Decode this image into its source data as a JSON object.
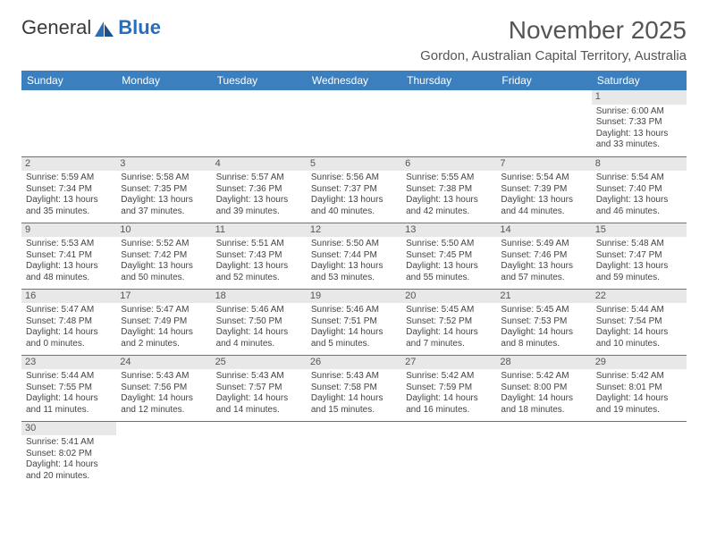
{
  "logo": {
    "text1": "General",
    "text2": "Blue"
  },
  "title": "November 2025",
  "location": "Gordon, Australian Capital Territory, Australia",
  "weekdays": [
    "Sunday",
    "Monday",
    "Tuesday",
    "Wednesday",
    "Thursday",
    "Friday",
    "Saturday"
  ],
  "colors": {
    "header_bg": "#3b7fbf",
    "header_text": "#ffffff",
    "daynum_bg": "#e8e8e8",
    "cell_border": "#3b7fbf"
  },
  "fonts": {
    "title_pt": 28,
    "location_pt": 15,
    "weekday_pt": 12,
    "daynum_pt": 11,
    "body_pt": 10
  },
  "weeks": [
    [
      null,
      null,
      null,
      null,
      null,
      null,
      {
        "n": "1",
        "sr": "Sunrise: 6:00 AM",
        "ss": "Sunset: 7:33 PM",
        "d1": "Daylight: 13 hours",
        "d2": "and 33 minutes."
      }
    ],
    [
      {
        "n": "2",
        "sr": "Sunrise: 5:59 AM",
        "ss": "Sunset: 7:34 PM",
        "d1": "Daylight: 13 hours",
        "d2": "and 35 minutes."
      },
      {
        "n": "3",
        "sr": "Sunrise: 5:58 AM",
        "ss": "Sunset: 7:35 PM",
        "d1": "Daylight: 13 hours",
        "d2": "and 37 minutes."
      },
      {
        "n": "4",
        "sr": "Sunrise: 5:57 AM",
        "ss": "Sunset: 7:36 PM",
        "d1": "Daylight: 13 hours",
        "d2": "and 39 minutes."
      },
      {
        "n": "5",
        "sr": "Sunrise: 5:56 AM",
        "ss": "Sunset: 7:37 PM",
        "d1": "Daylight: 13 hours",
        "d2": "and 40 minutes."
      },
      {
        "n": "6",
        "sr": "Sunrise: 5:55 AM",
        "ss": "Sunset: 7:38 PM",
        "d1": "Daylight: 13 hours",
        "d2": "and 42 minutes."
      },
      {
        "n": "7",
        "sr": "Sunrise: 5:54 AM",
        "ss": "Sunset: 7:39 PM",
        "d1": "Daylight: 13 hours",
        "d2": "and 44 minutes."
      },
      {
        "n": "8",
        "sr": "Sunrise: 5:54 AM",
        "ss": "Sunset: 7:40 PM",
        "d1": "Daylight: 13 hours",
        "d2": "and 46 minutes."
      }
    ],
    [
      {
        "n": "9",
        "sr": "Sunrise: 5:53 AM",
        "ss": "Sunset: 7:41 PM",
        "d1": "Daylight: 13 hours",
        "d2": "and 48 minutes."
      },
      {
        "n": "10",
        "sr": "Sunrise: 5:52 AM",
        "ss": "Sunset: 7:42 PM",
        "d1": "Daylight: 13 hours",
        "d2": "and 50 minutes."
      },
      {
        "n": "11",
        "sr": "Sunrise: 5:51 AM",
        "ss": "Sunset: 7:43 PM",
        "d1": "Daylight: 13 hours",
        "d2": "and 52 minutes."
      },
      {
        "n": "12",
        "sr": "Sunrise: 5:50 AM",
        "ss": "Sunset: 7:44 PM",
        "d1": "Daylight: 13 hours",
        "d2": "and 53 minutes."
      },
      {
        "n": "13",
        "sr": "Sunrise: 5:50 AM",
        "ss": "Sunset: 7:45 PM",
        "d1": "Daylight: 13 hours",
        "d2": "and 55 minutes."
      },
      {
        "n": "14",
        "sr": "Sunrise: 5:49 AM",
        "ss": "Sunset: 7:46 PM",
        "d1": "Daylight: 13 hours",
        "d2": "and 57 minutes."
      },
      {
        "n": "15",
        "sr": "Sunrise: 5:48 AM",
        "ss": "Sunset: 7:47 PM",
        "d1": "Daylight: 13 hours",
        "d2": "and 59 minutes."
      }
    ],
    [
      {
        "n": "16",
        "sr": "Sunrise: 5:47 AM",
        "ss": "Sunset: 7:48 PM",
        "d1": "Daylight: 14 hours",
        "d2": "and 0 minutes."
      },
      {
        "n": "17",
        "sr": "Sunrise: 5:47 AM",
        "ss": "Sunset: 7:49 PM",
        "d1": "Daylight: 14 hours",
        "d2": "and 2 minutes."
      },
      {
        "n": "18",
        "sr": "Sunrise: 5:46 AM",
        "ss": "Sunset: 7:50 PM",
        "d1": "Daylight: 14 hours",
        "d2": "and 4 minutes."
      },
      {
        "n": "19",
        "sr": "Sunrise: 5:46 AM",
        "ss": "Sunset: 7:51 PM",
        "d1": "Daylight: 14 hours",
        "d2": "and 5 minutes."
      },
      {
        "n": "20",
        "sr": "Sunrise: 5:45 AM",
        "ss": "Sunset: 7:52 PM",
        "d1": "Daylight: 14 hours",
        "d2": "and 7 minutes."
      },
      {
        "n": "21",
        "sr": "Sunrise: 5:45 AM",
        "ss": "Sunset: 7:53 PM",
        "d1": "Daylight: 14 hours",
        "d2": "and 8 minutes."
      },
      {
        "n": "22",
        "sr": "Sunrise: 5:44 AM",
        "ss": "Sunset: 7:54 PM",
        "d1": "Daylight: 14 hours",
        "d2": "and 10 minutes."
      }
    ],
    [
      {
        "n": "23",
        "sr": "Sunrise: 5:44 AM",
        "ss": "Sunset: 7:55 PM",
        "d1": "Daylight: 14 hours",
        "d2": "and 11 minutes."
      },
      {
        "n": "24",
        "sr": "Sunrise: 5:43 AM",
        "ss": "Sunset: 7:56 PM",
        "d1": "Daylight: 14 hours",
        "d2": "and 12 minutes."
      },
      {
        "n": "25",
        "sr": "Sunrise: 5:43 AM",
        "ss": "Sunset: 7:57 PM",
        "d1": "Daylight: 14 hours",
        "d2": "and 14 minutes."
      },
      {
        "n": "26",
        "sr": "Sunrise: 5:43 AM",
        "ss": "Sunset: 7:58 PM",
        "d1": "Daylight: 14 hours",
        "d2": "and 15 minutes."
      },
      {
        "n": "27",
        "sr": "Sunrise: 5:42 AM",
        "ss": "Sunset: 7:59 PM",
        "d1": "Daylight: 14 hours",
        "d2": "and 16 minutes."
      },
      {
        "n": "28",
        "sr": "Sunrise: 5:42 AM",
        "ss": "Sunset: 8:00 PM",
        "d1": "Daylight: 14 hours",
        "d2": "and 18 minutes."
      },
      {
        "n": "29",
        "sr": "Sunrise: 5:42 AM",
        "ss": "Sunset: 8:01 PM",
        "d1": "Daylight: 14 hours",
        "d2": "and 19 minutes."
      }
    ],
    [
      {
        "n": "30",
        "sr": "Sunrise: 5:41 AM",
        "ss": "Sunset: 8:02 PM",
        "d1": "Daylight: 14 hours",
        "d2": "and 20 minutes."
      },
      null,
      null,
      null,
      null,
      null,
      null
    ]
  ]
}
